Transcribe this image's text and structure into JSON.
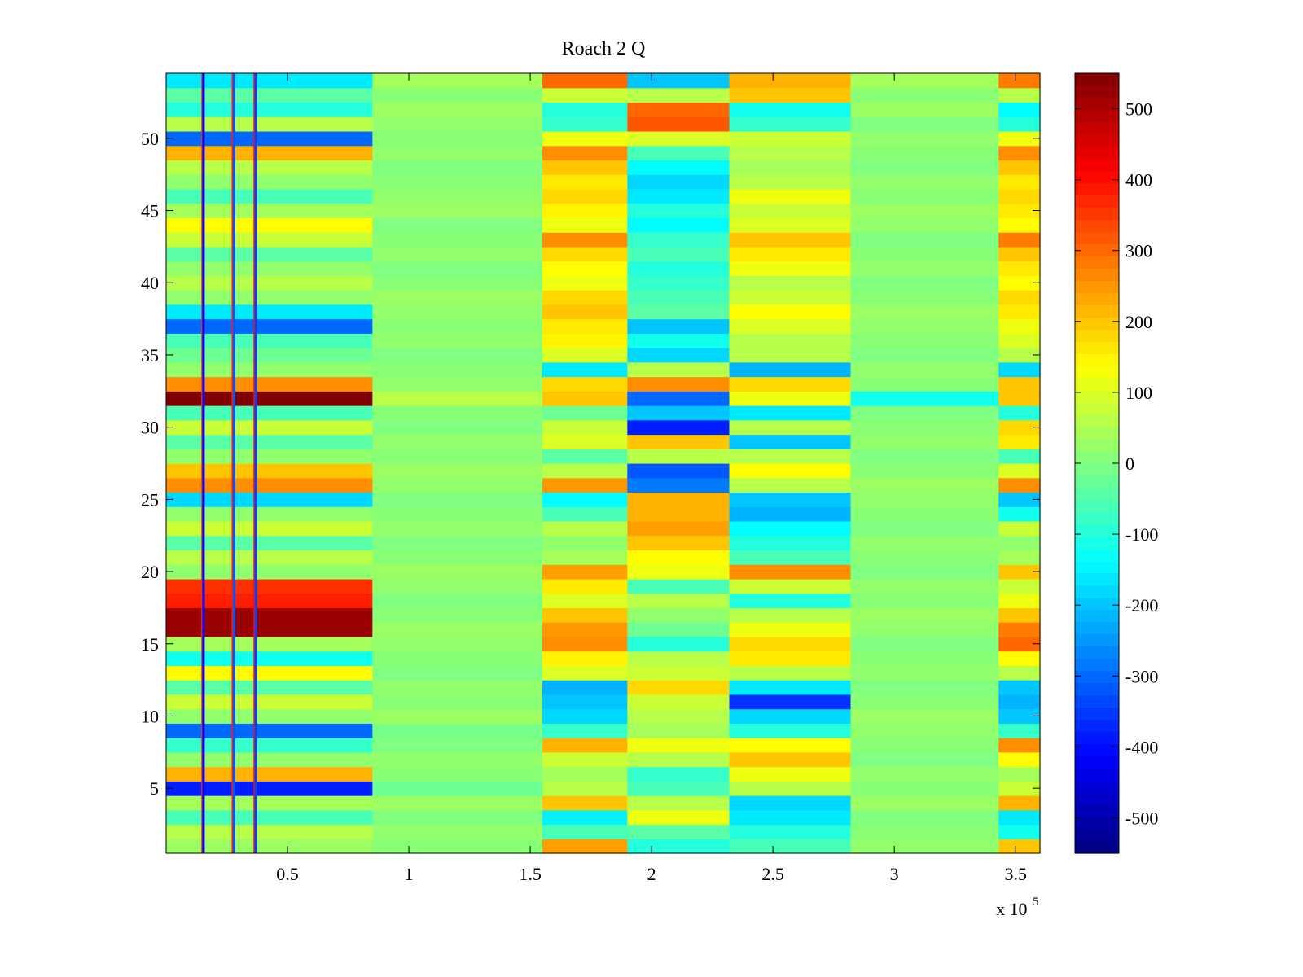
{
  "chart_data": {
    "type": "heatmap",
    "title": "Roach 2 Q",
    "xlabel": "",
    "ylabel": "",
    "x_exponent_label": "x 10",
    "x_exponent_power": "5",
    "xlim": [
      0,
      360000
    ],
    "ylim": [
      0.5,
      54.5
    ],
    "rows": 54,
    "x_ticks": [
      {
        "value": 50000,
        "label": "0.5"
      },
      {
        "value": 100000,
        "label": "1"
      },
      {
        "value": 150000,
        "label": "1.5"
      },
      {
        "value": 200000,
        "label": "2"
      },
      {
        "value": 250000,
        "label": "2.5"
      },
      {
        "value": 300000,
        "label": "3"
      },
      {
        "value": 350000,
        "label": "3.5"
      }
    ],
    "y_ticks": [
      {
        "value": 5,
        "label": "5"
      },
      {
        "value": 10,
        "label": "10"
      },
      {
        "value": 15,
        "label": "15"
      },
      {
        "value": 20,
        "label": "20"
      },
      {
        "value": 25,
        "label": "25"
      },
      {
        "value": 30,
        "label": "30"
      },
      {
        "value": 35,
        "label": "35"
      },
      {
        "value": 40,
        "label": "40"
      },
      {
        "value": 45,
        "label": "45"
      },
      {
        "value": 50,
        "label": "50"
      }
    ],
    "colorbar": {
      "colormap": "jet",
      "range": [
        -550,
        550
      ],
      "ticks": [
        {
          "value": 500,
          "label": "500"
        },
        {
          "value": 400,
          "label": "400"
        },
        {
          "value": 300,
          "label": "300"
        },
        {
          "value": 200,
          "label": "200"
        },
        {
          "value": 100,
          "label": "100"
        },
        {
          "value": 0,
          "label": "0"
        },
        {
          "value": -100,
          "label": "-100"
        },
        {
          "value": -200,
          "label": "-200"
        },
        {
          "value": -300,
          "label": "-300"
        },
        {
          "value": -400,
          "label": "-400"
        },
        {
          "value": -500,
          "label": "-500"
        }
      ]
    },
    "value_regions": [
      {
        "x": [
          0,
          85000
        ],
        "row_values": [
          30,
          60,
          -60,
          40,
          -380,
          220,
          20,
          -80,
          -300,
          20,
          80,
          -40,
          140,
          -120,
          40,
          520,
          520,
          380,
          360,
          20,
          60,
          -40,
          80,
          20,
          -180,
          260,
          200,
          20,
          -40,
          80,
          -60,
          550,
          260,
          20,
          -20,
          -60,
          -300,
          -160,
          20,
          60,
          20,
          -40,
          80,
          140,
          40,
          -60,
          20,
          60,
          220,
          -300,
          60,
          -100,
          -40,
          -160
        ]
      },
      {
        "x": [
          85000,
          155000
        ],
        "row_values": [
          10,
          20,
          0,
          30,
          -20,
          10,
          20,
          0,
          -10,
          30,
          10,
          20,
          0,
          10,
          20,
          30,
          10,
          0,
          20,
          30,
          10,
          0,
          20,
          10,
          0,
          20,
          30,
          10,
          20,
          0,
          10,
          60,
          20,
          10,
          0,
          20,
          10,
          20,
          30,
          10,
          0,
          20,
          10,
          0,
          30,
          20,
          10,
          0,
          20,
          10,
          20,
          30,
          10,
          40
        ]
      },
      {
        "x": [
          155000,
          190000
        ],
        "row_values": [
          240,
          -60,
          -150,
          200,
          60,
          40,
          80,
          220,
          -80,
          -180,
          -200,
          -220,
          100,
          150,
          260,
          250,
          200,
          100,
          160,
          240,
          40,
          20,
          60,
          -60,
          -140,
          250,
          60,
          -40,
          100,
          80,
          -20,
          200,
          180,
          -160,
          100,
          150,
          160,
          200,
          180,
          120,
          140,
          180,
          260,
          120,
          150,
          180,
          160,
          200,
          260,
          120,
          -80,
          -100,
          80,
          300
        ]
      },
      {
        "x": [
          190000,
          232000
        ],
        "row_values": [
          -100,
          -40,
          120,
          60,
          -60,
          -80,
          60,
          120,
          40,
          60,
          80,
          180,
          80,
          60,
          -100,
          -20,
          20,
          60,
          -60,
          120,
          140,
          200,
          240,
          220,
          220,
          -280,
          -320,
          60,
          200,
          -380,
          -200,
          -300,
          260,
          60,
          -180,
          -120,
          -200,
          -40,
          -60,
          -80,
          -100,
          -60,
          -80,
          -140,
          -100,
          -160,
          -180,
          -140,
          -60,
          100,
          320,
          300,
          60,
          -200
        ]
      },
      {
        "x": [
          232000,
          282000
        ],
        "row_values": [
          -60,
          -100,
          -160,
          -180,
          60,
          120,
          200,
          140,
          -100,
          -180,
          -360,
          -160,
          60,
          160,
          180,
          120,
          60,
          -100,
          80,
          260,
          -60,
          -100,
          -140,
          -220,
          -200,
          60,
          140,
          60,
          -200,
          60,
          -160,
          120,
          180,
          -220,
          60,
          60,
          100,
          140,
          80,
          60,
          120,
          160,
          200,
          100,
          80,
          120,
          60,
          40,
          60,
          80,
          -80,
          -120,
          200,
          220
        ]
      },
      {
        "x": [
          282000,
          343000
        ],
        "row_values": [
          20,
          10,
          0,
          30,
          10,
          20,
          0,
          10,
          20,
          30,
          10,
          0,
          20,
          10,
          0,
          20,
          30,
          10,
          20,
          0,
          10,
          20,
          0,
          10,
          20,
          30,
          10,
          0,
          20,
          10,
          0,
          -120,
          10,
          20,
          0,
          10,
          20,
          30,
          10,
          0,
          20,
          10,
          0,
          20,
          30,
          10,
          20,
          0,
          10,
          20,
          0,
          30,
          10,
          40
        ]
      },
      {
        "x": [
          343000,
          360000
        ],
        "row_values": [
          200,
          -120,
          -160,
          220,
          80,
          40,
          140,
          260,
          -80,
          -200,
          -220,
          -200,
          60,
          140,
          300,
          280,
          200,
          120,
          80,
          200,
          40,
          20,
          80,
          -120,
          -200,
          260,
          100,
          -60,
          160,
          180,
          -100,
          200,
          200,
          -180,
          60,
          100,
          120,
          160,
          180,
          140,
          160,
          200,
          280,
          140,
          160,
          180,
          160,
          200,
          260,
          120,
          -100,
          -140,
          60,
          280
        ]
      }
    ],
    "vertical_streaks": [
      {
        "x": 15000,
        "value": 360
      },
      {
        "x": 15400,
        "value": -420
      },
      {
        "x": 27500,
        "value": 380
      },
      {
        "x": 28000,
        "value": -320
      },
      {
        "x": 36500,
        "value": 400
      },
      {
        "x": 37000,
        "value": -340
      }
    ]
  }
}
